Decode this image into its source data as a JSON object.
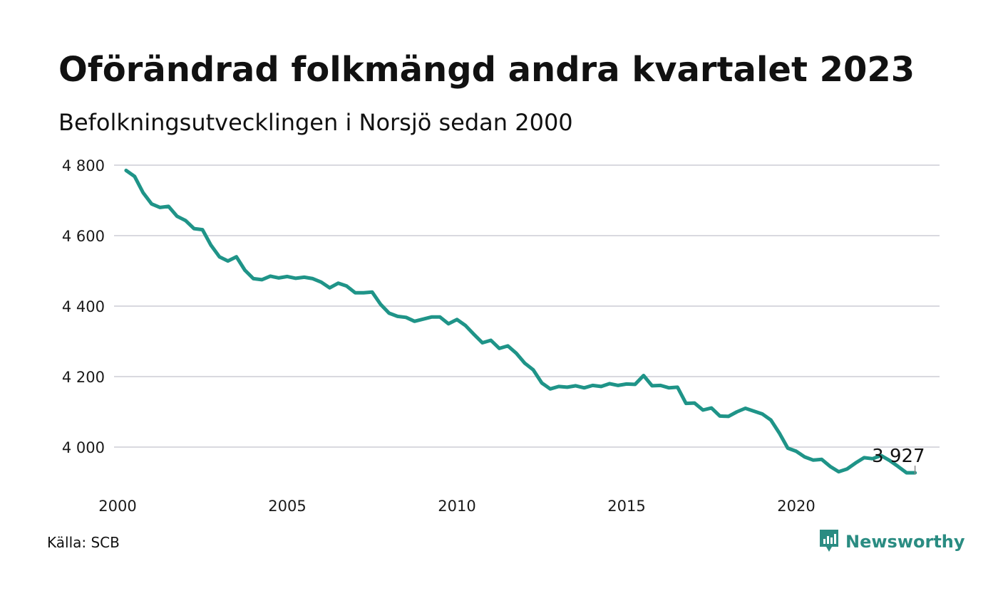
{
  "title": "Oförändrad folkmängd andra kvartalet 2023",
  "subtitle": "Befolkningsutvecklingen i Norsjö sedan 2000",
  "source": "Källa: SCB",
  "brand": {
    "name": "Newsworthy",
    "icon": "newsworthy-logo-icon",
    "color": "#2a8c82"
  },
  "colors": {
    "line": "#1f9488",
    "grid": "#d9d9df",
    "text": "#111111"
  },
  "chart_data": {
    "type": "line",
    "xlabel": "",
    "ylabel": "",
    "ylim": [
      3880,
      4800
    ],
    "xlim": [
      2000,
      2024
    ],
    "grid": true,
    "legend": "none",
    "y_ticks": [
      {
        "value": 4800,
        "label": "4 800"
      },
      {
        "value": 4600,
        "label": "4 600"
      },
      {
        "value": 4400,
        "label": "4 400"
      },
      {
        "value": 4200,
        "label": "4 200"
      },
      {
        "value": 4000,
        "label": "4 000"
      }
    ],
    "x_ticks": [
      {
        "value": 2000,
        "label": "2000"
      },
      {
        "value": 2005,
        "label": "2005"
      },
      {
        "value": 2010,
        "label": "2010"
      },
      {
        "value": 2015,
        "label": "2015"
      },
      {
        "value": 2020,
        "label": "2020"
      }
    ],
    "end_label": "3 927",
    "series": [
      {
        "x": [
          2000.25,
          2000.5,
          2000.75,
          2001.0,
          2001.25,
          2001.5,
          2001.75,
          2002.0,
          2002.25,
          2002.5,
          2002.75,
          2003.0,
          2003.25,
          2003.5,
          2003.75,
          2004.0,
          2004.25,
          2004.5,
          2004.75,
          2005.0,
          2005.25,
          2005.5,
          2005.75,
          2006.0,
          2006.25,
          2006.5,
          2006.75,
          2007.0,
          2007.25,
          2007.5,
          2007.75,
          2008.0,
          2008.25,
          2008.5,
          2008.75,
          2009.0,
          2009.25,
          2009.5,
          2009.75,
          2010.0,
          2010.25,
          2010.5,
          2010.75,
          2011.0,
          2011.25,
          2011.5,
          2011.75,
          2012.0,
          2012.25,
          2012.5,
          2012.75,
          2013.0,
          2013.25,
          2013.5,
          2013.75,
          2014.0,
          2014.25,
          2014.5,
          2014.75,
          2015.0,
          2015.25,
          2015.5,
          2015.75,
          2016.0,
          2016.25,
          2016.5,
          2016.75,
          2017.0,
          2017.25,
          2017.5,
          2017.75,
          2018.0,
          2018.25,
          2018.5,
          2018.75,
          2019.0,
          2019.25,
          2019.5,
          2019.75,
          2020.0,
          2020.25,
          2020.5,
          2020.75,
          2021.0,
          2021.25,
          2021.5,
          2021.75,
          2022.0,
          2022.25,
          2022.5,
          2022.75,
          2023.0,
          2023.25,
          2023.5
        ],
        "y": [
          4785,
          4768,
          4722,
          4690,
          4680,
          4683,
          4655,
          4643,
          4620,
          4617,
          4573,
          4540,
          4528,
          4540,
          4502,
          4478,
          4475,
          4485,
          4480,
          4484,
          4479,
          4482,
          4478,
          4468,
          4452,
          4465,
          4457,
          4438,
          4438,
          4440,
          4405,
          4380,
          4371,
          4368,
          4357,
          4363,
          4369,
          4369,
          4350,
          4362,
          4345,
          4320,
          4296,
          4303,
          4280,
          4287,
          4266,
          4238,
          4219,
          4182,
          4165,
          4172,
          4170,
          4174,
          4168,
          4175,
          4172,
          4180,
          4175,
          4179,
          4178,
          4203,
          4174,
          4175,
          4168,
          4170,
          4124,
          4125,
          4105,
          4111,
          4088,
          4087,
          4100,
          4110,
          4102,
          4094,
          4077,
          4040,
          3997,
          3988,
          3972,
          3963,
          3965,
          3945,
          3930,
          3938,
          3955,
          3970,
          3967,
          3976,
          3962,
          3945,
          3927,
          3927
        ]
      }
    ]
  }
}
